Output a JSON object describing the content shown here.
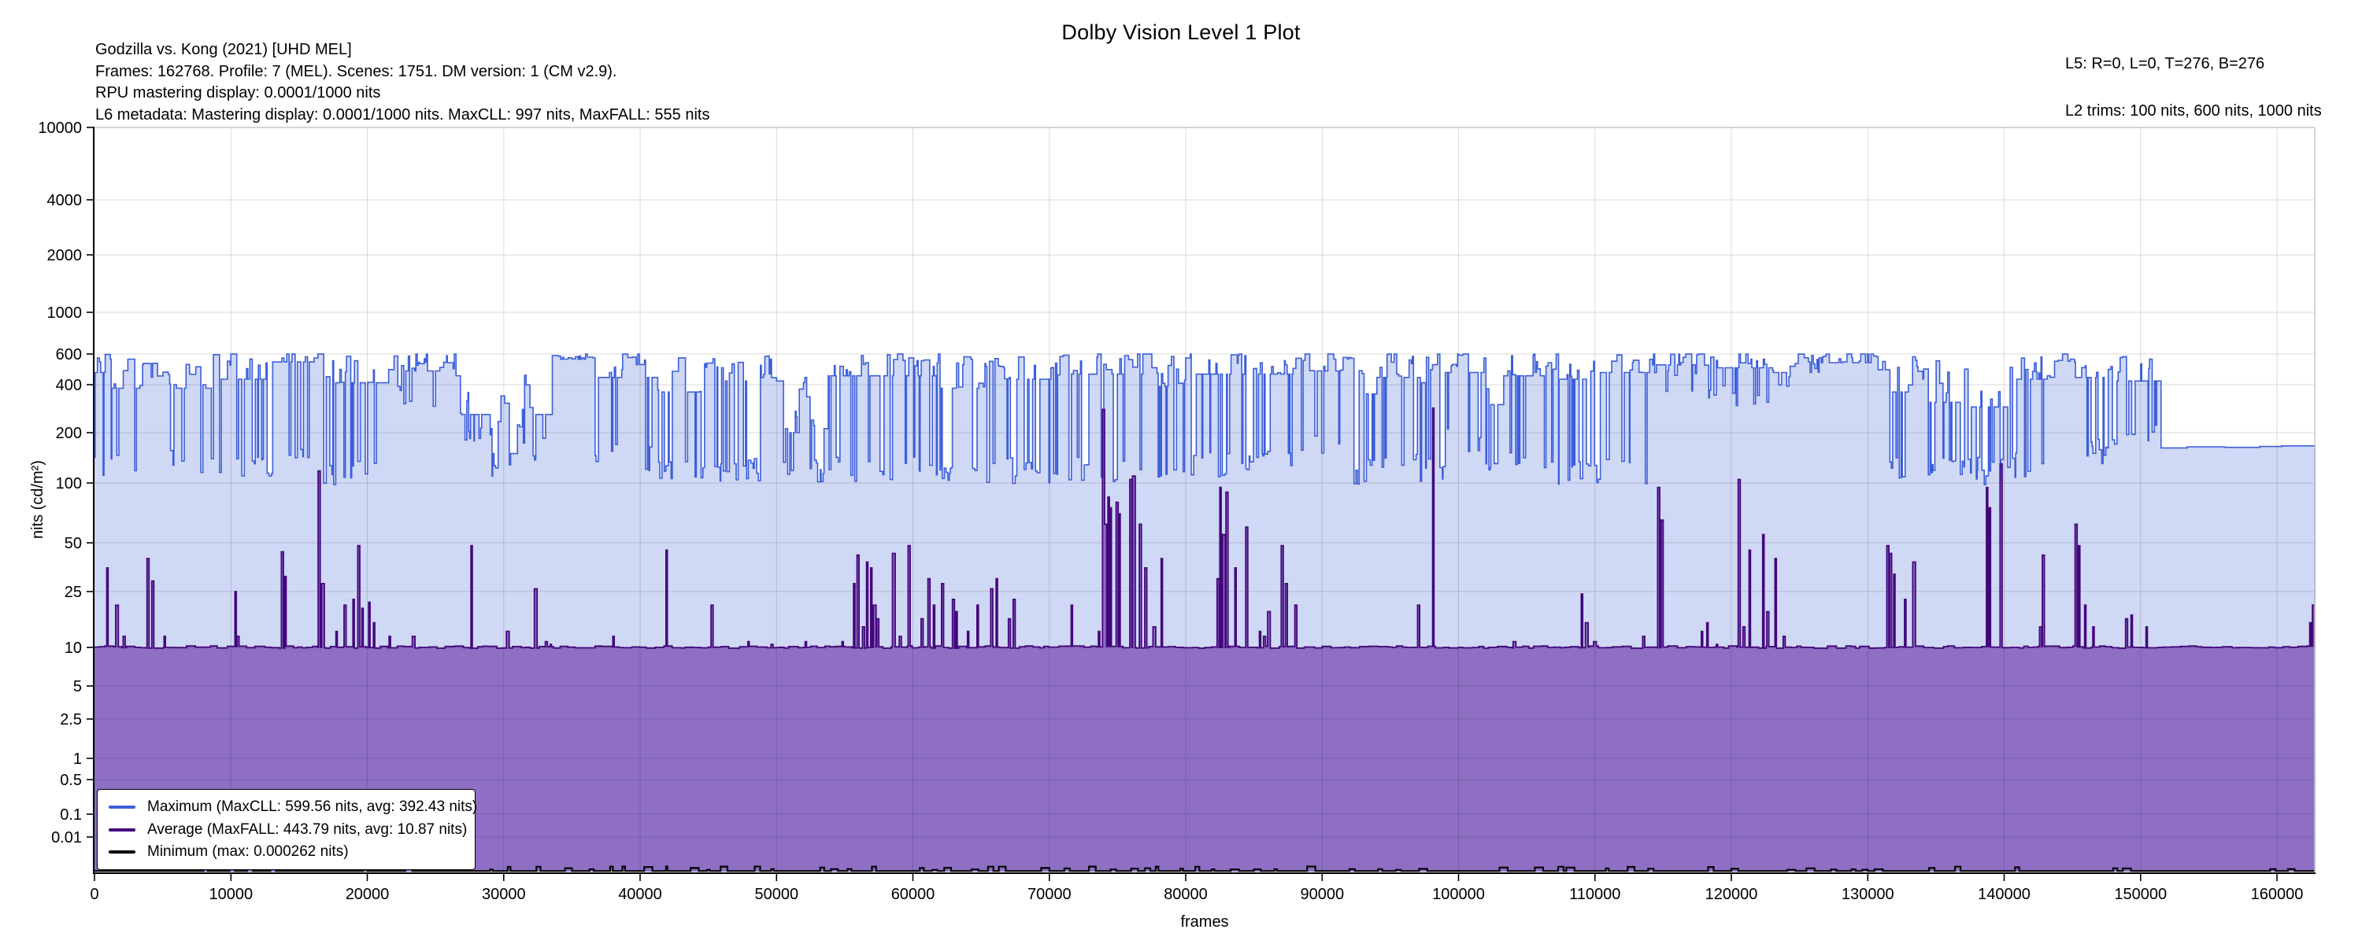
{
  "header": {
    "info_lines": [
      "Godzilla vs. Kong (2021) [UHD MEL]",
      "Frames: 162768. Profile: 7 (MEL). Scenes: 1751. DM version: 1 (CM v2.9).",
      "RPU mastering display: 0.0001/1000 nits",
      "L6 metadata: Mastering display: 0.0001/1000 nits. MaxCLL: 997 nits, MaxFALL: 555 nits"
    ],
    "l5_line": "L5: R=0, L=0, T=276, B=276",
    "l2_line": "L2 trims: 100 nits, 600 nits, 1000 nits"
  },
  "chart_data": {
    "type": "area",
    "title": "Dolby Vision Level 1 Plot",
    "xlabel": "frames",
    "ylabel": "nits (cd/m²)",
    "x_max": 162768,
    "x_ticks": [
      0,
      10000,
      20000,
      30000,
      40000,
      50000,
      60000,
      70000,
      80000,
      90000,
      100000,
      110000,
      120000,
      130000,
      140000,
      150000,
      160000
    ],
    "x_tick_labels": [
      "0",
      "10000",
      "20000",
      "30000",
      "40000",
      "50000",
      "60000",
      "70000",
      "80000",
      "90000",
      "100000",
      "110000",
      "120000",
      "130000",
      "140000",
      "150000",
      "160000"
    ],
    "y_ticks": [
      10000,
      4000,
      2000,
      1000,
      600,
      400,
      200,
      100,
      50,
      25,
      10,
      5,
      2.5,
      1,
      0.5,
      0.1,
      0.01
    ],
    "y_tick_labels": [
      "10000",
      "4000",
      "2000",
      "1000",
      "600",
      "400",
      "200",
      "100",
      "50",
      "25",
      "10",
      "5",
      "2.5",
      "1",
      "0.5",
      "0.1",
      "0.01"
    ],
    "y_scale": "pq-log",
    "grid": true,
    "seed": 7,
    "legend": {
      "position": "lower left"
    },
    "series": {
      "maximum": {
        "name": "Maximum",
        "label": "Maximum (MaxCLL: 599.56 nits, avg: 392.43 nits)",
        "maxcll_nits": 599.56,
        "avg_nits": 392.43,
        "cap_nits": 599.56,
        "line_color": "#3C5ED9",
        "fill_color": "#CFD8F4",
        "envelope_segments": [
          [
            0,
            1,
            470,
            600,
            0.28,
            100
          ],
          [
            1,
            3.5,
            380,
            560,
            0.32,
            105
          ],
          [
            3.5,
            6,
            400,
            530,
            0.28,
            110
          ],
          [
            6,
            9,
            380,
            600,
            0.3,
            100
          ],
          [
            9,
            13,
            430,
            600,
            0.33,
            100
          ],
          [
            13,
            16,
            540,
            600,
            0.22,
            120
          ],
          [
            16,
            22,
            410,
            600,
            0.38,
            100
          ],
          [
            22,
            26.5,
            480,
            600,
            0.28,
            280
          ],
          [
            26.5,
            29,
            260,
            450,
            0.32,
            150
          ],
          [
            29,
            31.5,
            150,
            340,
            0.28,
            110
          ],
          [
            31.5,
            33.5,
            260,
            490,
            0.28,
            140
          ],
          [
            33.5,
            36.5,
            560,
            600,
            0.08,
            430
          ],
          [
            36.5,
            41,
            440,
            600,
            0.28,
            120
          ],
          [
            41,
            45,
            360,
            570,
            0.33,
            100
          ],
          [
            45,
            50.5,
            420,
            600,
            0.33,
            100
          ],
          [
            50.5,
            53.5,
            200,
            440,
            0.33,
            100
          ],
          [
            53.5,
            62,
            450,
            600,
            0.33,
            100
          ],
          [
            62,
            66,
            380,
            580,
            0.33,
            100
          ],
          [
            66,
            71,
            430,
            600,
            0.33,
            100
          ],
          [
            71,
            77,
            460,
            600,
            0.28,
            100
          ],
          [
            77,
            80,
            390,
            600,
            0.38,
            100
          ],
          [
            80,
            88,
            460,
            600,
            0.28,
            110
          ],
          [
            88,
            92,
            480,
            600,
            0.22,
            150
          ],
          [
            92,
            94,
            350,
            570,
            0.38,
            100
          ],
          [
            94,
            97,
            440,
            600,
            0.22,
            120
          ],
          [
            97,
            99,
            410,
            600,
            0.33,
            100
          ],
          [
            99,
            102,
            470,
            600,
            0.18,
            150
          ],
          [
            102,
            103.2,
            300,
            510,
            0.42,
            100
          ],
          [
            103.2,
            106,
            450,
            600,
            0.22,
            110
          ],
          [
            106,
            110,
            430,
            600,
            0.28,
            100
          ],
          [
            110,
            114,
            470,
            600,
            0.22,
            100
          ],
          [
            114,
            118,
            520,
            600,
            0.13,
            350
          ],
          [
            118,
            123,
            500,
            600,
            0.18,
            300
          ],
          [
            123,
            126.5,
            470,
            600,
            0.22,
            380
          ],
          [
            126.5,
            130.5,
            535,
            600,
            0.08,
            380
          ],
          [
            130.5,
            133,
            360,
            580,
            0.33,
            100
          ],
          [
            133,
            137,
            310,
            580,
            0.33,
            100
          ],
          [
            137,
            140.5,
            290,
            570,
            0.33,
            100
          ],
          [
            140.5,
            144,
            430,
            600,
            0.28,
            110
          ],
          [
            144,
            147.5,
            440,
            600,
            0.28,
            130
          ],
          [
            147.5,
            151.3,
            420,
            580,
            0.28,
            160
          ],
          [
            151.3,
            157,
            162,
            165,
            0,
            162
          ],
          [
            157,
            162.3,
            164,
            167,
            0,
            164
          ],
          [
            162.3,
            162.768,
            215,
            222,
            0,
            215
          ]
        ]
      },
      "average": {
        "name": "Average",
        "label": "Average (MaxFALL: 443.79 nits, avg: 10.87 nits)",
        "maxfall_nits": 443.79,
        "avg_nits": 10.87,
        "baseline_nits": 10,
        "line_color": "#43067B",
        "fill_color": "#8E6FC4",
        "spikes": [
          [
            0.9,
            35
          ],
          [
            1.55,
            20
          ],
          [
            2.1,
            12
          ],
          [
            3.85,
            40
          ],
          [
            4.2,
            29
          ],
          [
            5.1,
            12
          ],
          [
            10.3,
            25
          ],
          [
            10.45,
            12
          ],
          [
            13.7,
            44
          ],
          [
            13.95,
            31
          ],
          [
            16.4,
            118
          ],
          [
            16.65,
            28
          ],
          [
            17.7,
            13
          ],
          [
            18.3,
            20
          ],
          [
            18.95,
            22
          ],
          [
            19.3,
            48
          ],
          [
            19.6,
            19
          ],
          [
            20.1,
            21
          ],
          [
            20.45,
            15
          ],
          [
            21.6,
            12
          ],
          [
            23.3,
            12
          ],
          [
            27.6,
            48
          ],
          [
            30.2,
            13
          ],
          [
            32.3,
            26
          ],
          [
            33.05,
            11
          ],
          [
            33.4,
            10.5
          ],
          [
            38,
            12
          ],
          [
            41.9,
            45
          ],
          [
            45.2,
            20
          ],
          [
            47.9,
            11
          ],
          [
            49.6,
            10.5
          ],
          [
            52.1,
            11
          ],
          [
            54.8,
            11
          ],
          [
            55.65,
            28
          ],
          [
            55.9,
            42
          ],
          [
            56.3,
            14
          ],
          [
            56.6,
            38
          ],
          [
            56.9,
            35
          ],
          [
            57.1,
            20
          ],
          [
            57.35,
            16
          ],
          [
            58.5,
            43
          ],
          [
            59,
            12
          ],
          [
            59.65,
            48
          ],
          [
            60.6,
            16
          ],
          [
            61.1,
            30
          ],
          [
            61.5,
            20
          ],
          [
            62.1,
            28
          ],
          [
            62.9,
            22
          ],
          [
            63.15,
            18
          ],
          [
            64,
            13
          ],
          [
            64.7,
            20
          ],
          [
            65.7,
            26
          ],
          [
            66.1,
            30
          ],
          [
            67,
            16
          ],
          [
            67.35,
            22
          ],
          [
            71.6,
            20
          ],
          [
            73.6,
            13
          ],
          [
            73.9,
            280
          ],
          [
            74.05,
            62
          ],
          [
            74.3,
            85
          ],
          [
            74.45,
            75
          ],
          [
            74.9,
            80
          ],
          [
            75.1,
            70
          ],
          [
            75.9,
            105
          ],
          [
            76.1,
            110
          ],
          [
            76.6,
            62
          ],
          [
            77,
            35
          ],
          [
            77.6,
            14
          ],
          [
            78.2,
            40
          ],
          [
            82.3,
            30
          ],
          [
            82.5,
            95
          ],
          [
            82.7,
            55
          ],
          [
            82.95,
            90
          ],
          [
            83.6,
            35
          ],
          [
            84.4,
            60
          ],
          [
            85.4,
            13
          ],
          [
            85.7,
            12
          ],
          [
            86,
            18
          ],
          [
            87,
            48
          ],
          [
            87.3,
            28
          ],
          [
            88,
            20
          ],
          [
            97,
            20
          ],
          [
            98.1,
            285
          ],
          [
            104,
            11
          ],
          [
            109,
            24
          ],
          [
            109.3,
            15
          ],
          [
            109.9,
            11
          ],
          [
            113.5,
            12
          ],
          [
            114.6,
            95
          ],
          [
            114.85,
            65
          ],
          [
            117.8,
            13
          ],
          [
            118.2,
            15
          ],
          [
            118.9,
            10.5
          ],
          [
            120.5,
            105
          ],
          [
            120.85,
            14
          ],
          [
            121.3,
            45
          ],
          [
            122.3,
            55
          ],
          [
            122.6,
            18
          ],
          [
            123.2,
            40
          ],
          [
            123.8,
            12
          ],
          [
            131.4,
            48
          ],
          [
            131.6,
            43
          ],
          [
            131.9,
            32
          ],
          [
            132.7,
            22
          ],
          [
            133.3,
            38
          ],
          [
            138.7,
            95
          ],
          [
            138.9,
            75
          ],
          [
            139.7,
            130
          ],
          [
            142.6,
            14
          ],
          [
            142.8,
            42
          ],
          [
            145.2,
            62
          ],
          [
            145.45,
            48
          ],
          [
            145.9,
            20
          ],
          [
            146.5,
            14
          ],
          [
            148.9,
            16
          ],
          [
            149.3,
            17
          ],
          [
            150.4,
            14
          ],
          [
            162.4,
            15
          ],
          [
            162.6,
            20
          ]
        ]
      },
      "minimum": {
        "name": "Minimum",
        "label": "Minimum (max: 0.000262 nits)",
        "max_nits": 0.000262,
        "line_color": "#000000",
        "activity_regions": [
          [
            1.5,
            5,
            0.3
          ],
          [
            8,
            16,
            0.35
          ],
          [
            19,
            24,
            0.3
          ],
          [
            29,
            42,
            0.45
          ],
          [
            43,
            56,
            0.5
          ],
          [
            57,
            75,
            0.45
          ],
          [
            76,
            90,
            0.5
          ],
          [
            92,
            100,
            0.4
          ],
          [
            103,
            115,
            0.45
          ],
          [
            118,
            132,
            0.5
          ],
          [
            134,
            142,
            0.4
          ],
          [
            145,
            152,
            0.35
          ],
          [
            157,
            162.7,
            0.3
          ]
        ]
      }
    }
  }
}
